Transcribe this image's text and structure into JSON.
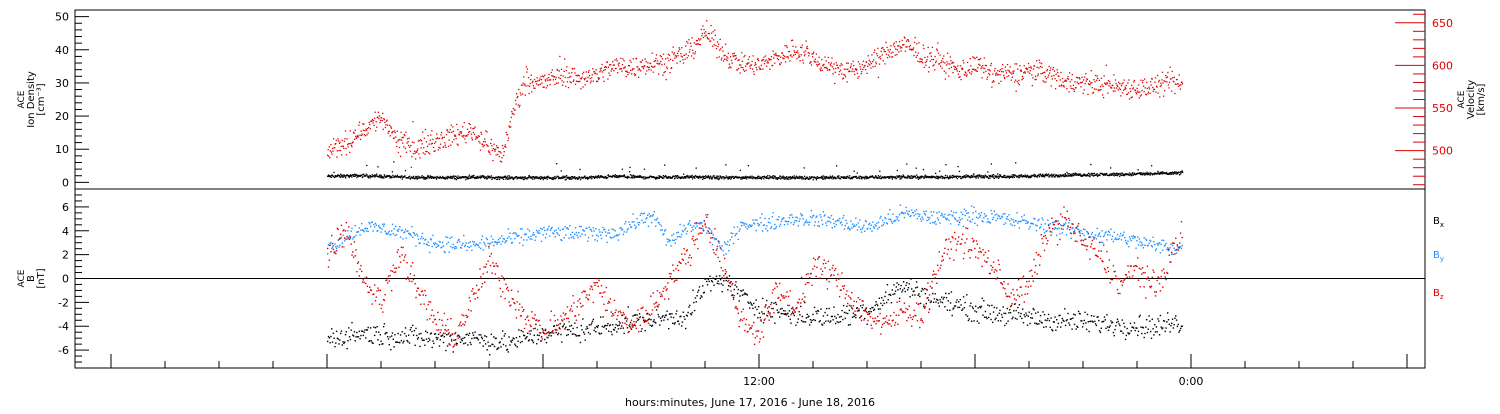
{
  "chart_data": [
    {
      "type": "scatter",
      "panel": "density-velocity",
      "ylabel": [
        "ACE",
        "Ion Density",
        "[cm⁻³]"
      ],
      "y2label": [
        "ACE",
        "Velocity",
        "[km/s]"
      ],
      "ylim": [
        -2,
        52
      ],
      "yticks": [
        0,
        10,
        20,
        30,
        40,
        50
      ],
      "y2lim": [
        455,
        665
      ],
      "y2ticks": [
        500,
        550,
        600,
        650
      ],
      "grid": false,
      "colors": {
        "density": "#000000",
        "velocity": "#dd0000"
      },
      "series": [
        {
          "name": "",
          "axis": "left",
          "color": "#000000",
          "x": [
            0,
            2,
            4,
            6,
            8,
            10,
            12,
            14,
            16,
            18,
            20,
            22,
            24,
            26,
            28,
            30,
            32,
            34,
            36,
            38,
            40,
            42,
            44,
            46,
            47.5
          ],
          "values": [
            2.0,
            2.2,
            1.8,
            1.6,
            1.7,
            1.6,
            1.6,
            1.5,
            2.0,
            1.7,
            1.8,
            1.6,
            1.7,
            1.6,
            1.6,
            1.7,
            1.8,
            1.8,
            1.9,
            2.0,
            2.2,
            2.5,
            2.6,
            2.8,
            3.0
          ]
        },
        {
          "name": "",
          "axis": "right",
          "color": "#dd0000",
          "x": [
            0,
            1,
            2,
            3,
            4,
            5,
            6,
            7,
            8,
            9,
            9.7,
            10.5,
            11,
            12,
            13,
            14,
            15,
            16,
            17,
            18,
            19,
            20,
            21,
            22,
            23,
            24,
            25,
            26,
            27,
            28,
            29,
            30,
            31,
            32,
            33,
            34,
            35,
            36,
            37,
            38,
            39,
            40,
            41,
            42,
            43,
            44,
            45,
            46,
            47,
            47.5
          ],
          "values": [
            500,
            510,
            525,
            540,
            510,
            505,
            512,
            518,
            525,
            505,
            495,
            560,
            585,
            580,
            590,
            585,
            590,
            600,
            598,
            605,
            605,
            615,
            640,
            615,
            602,
            600,
            610,
            620,
            608,
            600,
            592,
            602,
            615,
            625,
            612,
            606,
            595,
            600,
            590,
            590,
            595,
            592,
            582,
            580,
            578,
            576,
            574,
            576,
            580,
            578
          ]
        }
      ]
    },
    {
      "type": "scatter",
      "panel": "magnetic-field",
      "ylabel": [
        "ACE",
        "B",
        "[nT]"
      ],
      "ylim": [
        -7.5,
        7.5
      ],
      "yticks": [
        -6,
        -4,
        -2,
        0,
        2,
        4,
        6
      ],
      "zero_line": true,
      "grid": false,
      "series": [
        {
          "name": "Bx",
          "color": "#000000",
          "x": [
            0,
            2,
            4,
            6,
            8,
            10,
            12,
            14,
            16,
            18,
            20,
            21,
            22,
            23,
            24,
            26,
            28,
            30,
            31,
            32,
            34,
            36,
            38,
            40,
            42,
            44,
            46,
            47.5
          ],
          "values": [
            -5,
            -4.5,
            -4.8,
            -5,
            -4.9,
            -5.4,
            -4.5,
            -4.3,
            -3.8,
            -3.4,
            -3.0,
            -0.5,
            0,
            -1.5,
            -2.4,
            -3.0,
            -3.2,
            -2.6,
            -1.5,
            -0.6,
            -1.8,
            -2.6,
            -3.0,
            -3.4,
            -3.6,
            -3.8,
            -4.0,
            -3.6
          ]
        },
        {
          "name": "By",
          "color": "#1e90ff",
          "x": [
            0,
            2,
            4,
            6,
            8,
            10,
            12,
            14,
            16,
            18,
            19,
            20,
            21,
            22,
            23,
            24,
            26,
            28,
            30,
            32,
            34,
            36,
            38,
            40,
            42,
            44,
            46,
            47.5
          ],
          "values": [
            2.6,
            4.4,
            4.0,
            3.0,
            2.8,
            3.3,
            3.9,
            3.8,
            3.9,
            5.4,
            3.0,
            4.4,
            4.6,
            2.2,
            4.7,
            4.6,
            5.1,
            4.9,
            4.3,
            5.5,
            5.1,
            5.4,
            4.9,
            4.5,
            3.9,
            3.5,
            2.8,
            2.6
          ]
        },
        {
          "name": "Bz",
          "color": "#dd0000",
          "x": [
            0,
            1,
            2,
            3,
            4,
            5,
            6,
            7,
            8,
            9,
            10,
            11,
            12,
            13,
            14,
            15,
            16,
            17,
            18,
            19,
            20,
            21,
            22,
            23,
            24,
            25,
            26,
            27,
            28,
            29,
            30,
            31,
            32,
            33,
            34,
            35,
            36,
            37,
            38,
            39,
            40,
            41,
            42,
            43,
            44,
            45,
            46,
            47,
            47.5
          ],
          "values": [
            2.0,
            4.5,
            0.0,
            -2.0,
            2.5,
            -1.0,
            -3.5,
            -5.0,
            -2.0,
            1.5,
            -1.0,
            -3.0,
            -4.5,
            -3.5,
            -2.0,
            -0.5,
            -3.0,
            -3.8,
            -2.5,
            0.0,
            2.0,
            5.0,
            1.0,
            -3.5,
            -4.5,
            -1.0,
            -2.5,
            1.0,
            0.5,
            -1.5,
            -3.0,
            -4.0,
            -2.5,
            -3.0,
            1.5,
            3.5,
            2.5,
            1.0,
            -1.5,
            -0.5,
            4.0,
            5.0,
            3.0,
            2.0,
            -0.5,
            1.0,
            -1.0,
            2.5,
            3.5
          ]
        }
      ],
      "legend": [
        {
          "label": "B",
          "sub": "x",
          "color": "#000000"
        },
        {
          "label": "B",
          "sub": "y",
          "color": "#1e90ff"
        },
        {
          "label": "B",
          "sub": "z",
          "color": "#dd0000"
        }
      ]
    }
  ],
  "x_axis": {
    "range_hours": [
      -14,
      61
    ],
    "tick_labels": [
      {
        "hour": 24,
        "label": "12:00"
      },
      {
        "hour": 48,
        "label": "0:00"
      }
    ],
    "xlabel": "hours:minutes, June 17, 2016 - June 18, 2016"
  }
}
